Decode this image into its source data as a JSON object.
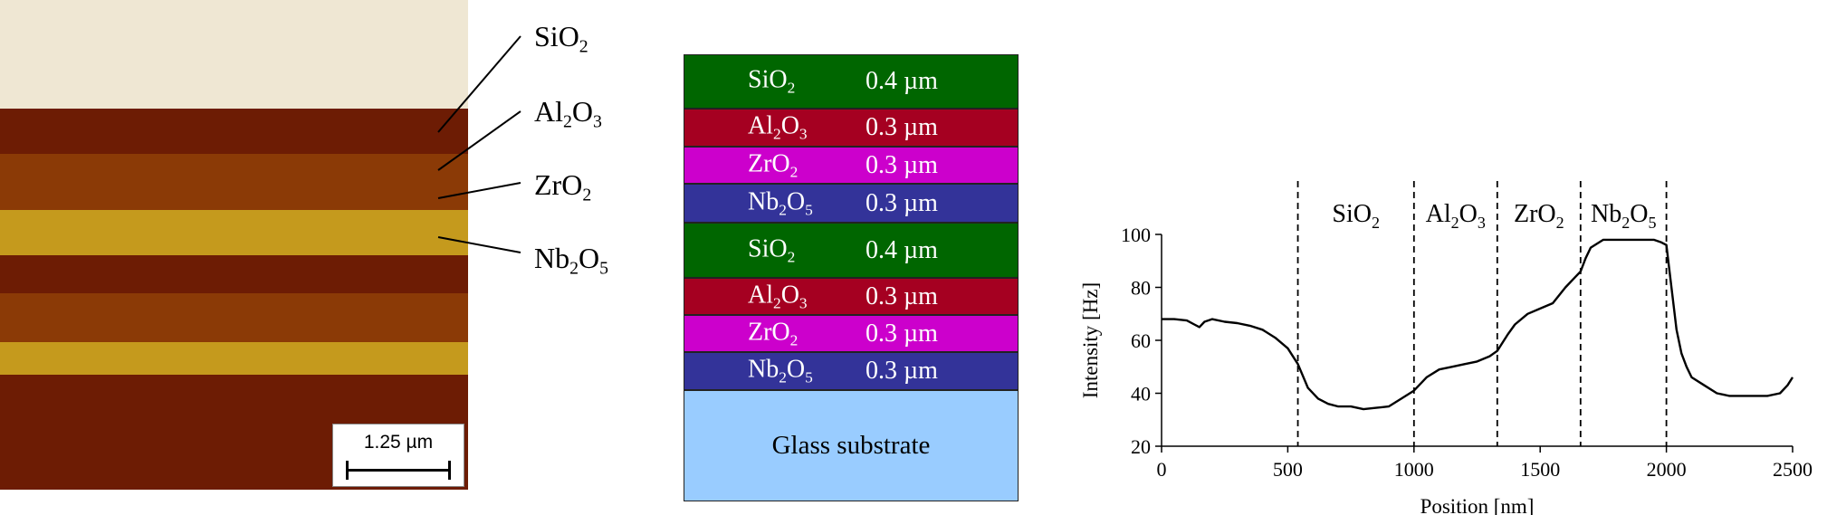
{
  "micrograph": {
    "scale_bar_label": "1.25 µm",
    "band_colors": [
      "#efe7d3",
      "#6d1c04",
      "#8b3a06",
      "#c59a1d",
      "#6d1c04",
      "#8b3a06",
      "#c59a1d",
      "#6d1c04"
    ]
  },
  "layer_labels": [
    {
      "base": "SiO",
      "sub": "2"
    },
    {
      "base": "Al",
      "sub": "2",
      "base2": "O",
      "sub2": "3"
    },
    {
      "base": "ZrO",
      "sub": "2"
    },
    {
      "base": "Nb",
      "sub": "2",
      "base2": "O",
      "sub2": "5"
    }
  ],
  "stack": {
    "layers": [
      {
        "mat_base": "SiO",
        "mat_sub": "2",
        "mat_base2": "",
        "mat_sub2": "",
        "thickness": "0.4 µm",
        "color": "#006600"
      },
      {
        "mat_base": "Al",
        "mat_sub": "2",
        "mat_base2": "O",
        "mat_sub2": "3",
        "thickness": "0.3 µm",
        "color": "#a50021"
      },
      {
        "mat_base": "ZrO",
        "mat_sub": "2",
        "mat_base2": "",
        "mat_sub2": "",
        "thickness": "0.3 µm",
        "color": "#cc00cc"
      },
      {
        "mat_base": "Nb",
        "mat_sub": "2",
        "mat_base2": "O",
        "mat_sub2": "5",
        "thickness": "0.3 µm",
        "color": "#333399"
      },
      {
        "mat_base": "SiO",
        "mat_sub": "2",
        "mat_base2": "",
        "mat_sub2": "",
        "thickness": "0.4 µm",
        "color": "#006600"
      },
      {
        "mat_base": "Al",
        "mat_sub": "2",
        "mat_base2": "O",
        "mat_sub2": "3",
        "thickness": "0.3 µm",
        "color": "#a50021"
      },
      {
        "mat_base": "ZrO",
        "mat_sub": "2",
        "mat_base2": "",
        "mat_sub2": "",
        "thickness": "0.3 µm",
        "color": "#cc00cc"
      },
      {
        "mat_base": "Nb",
        "mat_sub": "2",
        "mat_base2": "O",
        "mat_sub2": "5",
        "thickness": "0.3 µm",
        "color": "#333399"
      }
    ],
    "substrate_label": "Glass substrate",
    "substrate_color": "#99ccff"
  },
  "chart_data": {
    "type": "line",
    "xlabel": "Position [nm]",
    "ylabel": "Intensity [Hz]",
    "xlim": [
      0,
      2500
    ],
    "ylim": [
      20,
      100
    ],
    "xticks": [
      0,
      500,
      1000,
      1500,
      2000,
      2500
    ],
    "yticks": [
      20,
      40,
      60,
      80,
      100
    ],
    "grid": false,
    "boundaries": [
      540,
      1000,
      1330,
      1660,
      2000
    ],
    "regions": [
      {
        "base": "SiO",
        "sub": "2",
        "base2": "",
        "sub2": "",
        "x_center": 770
      },
      {
        "base": "Al",
        "sub": "2",
        "base2": "O",
        "sub2": "3",
        "x_center": 1165
      },
      {
        "base": "ZrO",
        "sub": "2",
        "base2": "",
        "sub2": "",
        "x_center": 1495
      },
      {
        "base": "Nb",
        "sub": "2",
        "base2": "O",
        "sub2": "5",
        "x_center": 1830
      }
    ],
    "series": [
      {
        "x": [
          0,
          50,
          100,
          130,
          150,
          170,
          200,
          250,
          300,
          350,
          400,
          450,
          500,
          540,
          580,
          620,
          660,
          700,
          750,
          800,
          850,
          900,
          950,
          1000,
          1050,
          1100,
          1150,
          1200,
          1250,
          1300,
          1330,
          1370,
          1400,
          1450,
          1500,
          1550,
          1600,
          1640,
          1660,
          1680,
          1700,
          1750,
          1800,
          1850,
          1900,
          1950,
          1980,
          2000,
          2010,
          2020,
          2030,
          2040,
          2060,
          2080,
          2100,
          2150,
          2200,
          2250,
          2300,
          2350,
          2400,
          2450,
          2480,
          2500
        ],
        "y": [
          68,
          68,
          67.5,
          66,
          65,
          67,
          68,
          67,
          66.5,
          65.5,
          64,
          61,
          57,
          51,
          42,
          38,
          36,
          35,
          35,
          34,
          34.5,
          35,
          38,
          41,
          46,
          49,
          50,
          51,
          52,
          54,
          56,
          62,
          66,
          70,
          72,
          74,
          80,
          84,
          86,
          91,
          95,
          98,
          98,
          98,
          98,
          98,
          97,
          96,
          88,
          80,
          72,
          64,
          55,
          50,
          46,
          43,
          40,
          39,
          39,
          39,
          39,
          40,
          43,
          46
        ]
      }
    ]
  }
}
